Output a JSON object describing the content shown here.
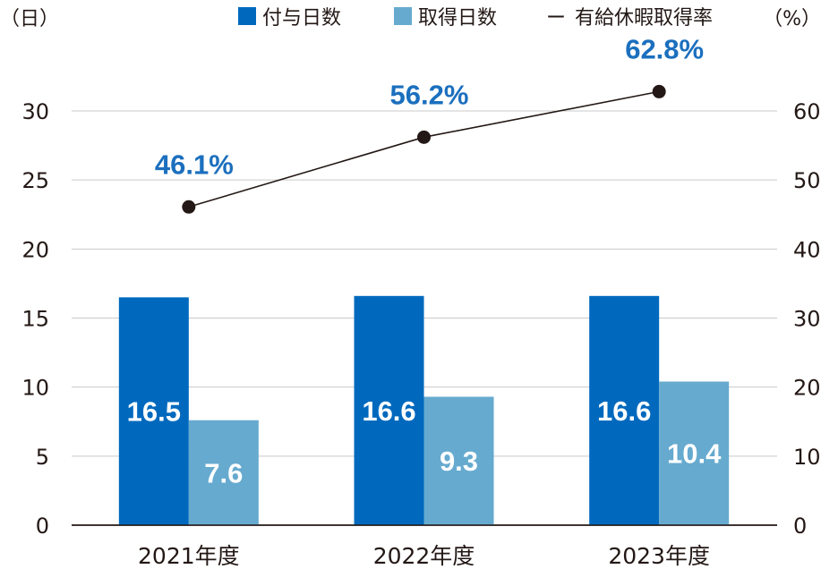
{
  "chart_data": {
    "type": "bar",
    "categories": [
      "2021年度",
      "2022年度",
      "2023年度"
    ],
    "series": [
      {
        "name": "付与日数",
        "type": "bar",
        "axis": "left",
        "color": "#0069be",
        "values": [
          16.5,
          16.6,
          16.6
        ],
        "labels": [
          "16.5",
          "16.6",
          "16.6"
        ]
      },
      {
        "name": "取得日数",
        "type": "bar",
        "axis": "left",
        "color": "#66aacf",
        "values": [
          7.6,
          9.3,
          10.4
        ],
        "labels": [
          "7.6",
          "9.3",
          "10.4"
        ]
      },
      {
        "name": "有給休暇取得率",
        "type": "line",
        "axis": "right",
        "color": "#231815",
        "values": [
          46.1,
          56.2,
          62.8
        ],
        "labels": [
          "46.1%",
          "56.2%",
          "62.8%"
        ]
      }
    ],
    "y_left": {
      "unit": "（日）",
      "ylim": [
        0,
        30
      ],
      "ticks": [
        "0",
        "5",
        "10",
        "15",
        "20",
        "25",
        "30"
      ]
    },
    "y_right": {
      "unit": "（%）",
      "ylim": [
        0,
        60
      ],
      "ticks": [
        "0",
        "10",
        "20",
        "30",
        "40",
        "50",
        "60"
      ]
    },
    "legend": {
      "placement": "top",
      "line_marker": "ー"
    },
    "grid": true,
    "pct_label_color": "#1b6fbe"
  }
}
